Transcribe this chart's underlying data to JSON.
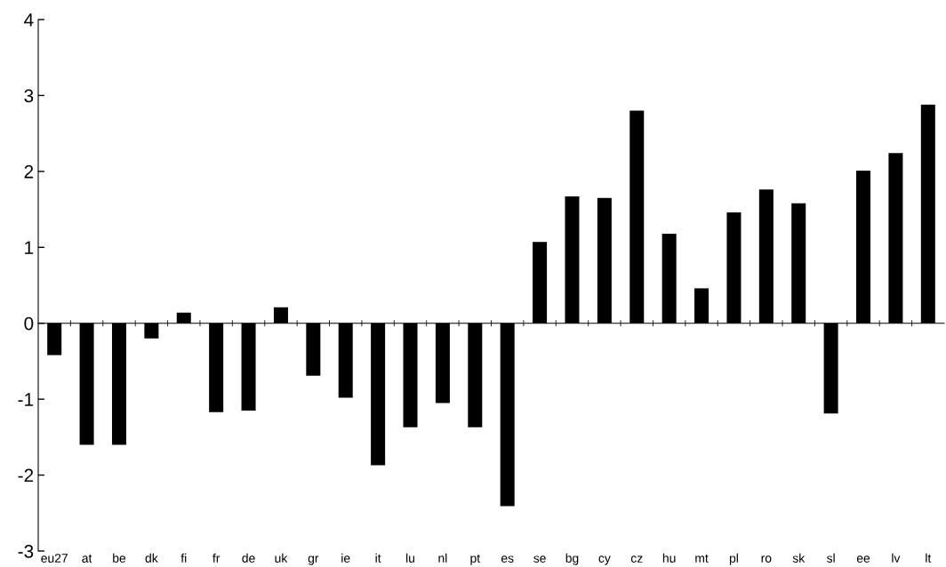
{
  "chart_data": {
    "type": "bar",
    "categories": [
      "eu27",
      "at",
      "be",
      "dk",
      "fi",
      "fr",
      "de",
      "uk",
      "gr",
      "ie",
      "it",
      "lu",
      "nl",
      "pt",
      "es",
      "se",
      "bg",
      "cy",
      "cz",
      "hu",
      "mt",
      "pl",
      "ro",
      "sk",
      "sl",
      "ee",
      "lv",
      "lt"
    ],
    "values": [
      -0.42,
      -1.6,
      -1.6,
      -0.2,
      0.14,
      -1.17,
      -1.15,
      0.21,
      -0.69,
      -0.98,
      -1.87,
      -1.37,
      -1.05,
      -1.37,
      -2.41,
      1.07,
      1.67,
      1.65,
      2.8,
      1.18,
      0.46,
      1.46,
      1.76,
      1.58,
      -1.19,
      2.01,
      2.24,
      2.88
    ],
    "color": "#000000",
    "ylim": [
      -3,
      4
    ],
    "yticks": [
      -3,
      -2,
      -1,
      0,
      1,
      2,
      3,
      4
    ],
    "legend": false
  }
}
